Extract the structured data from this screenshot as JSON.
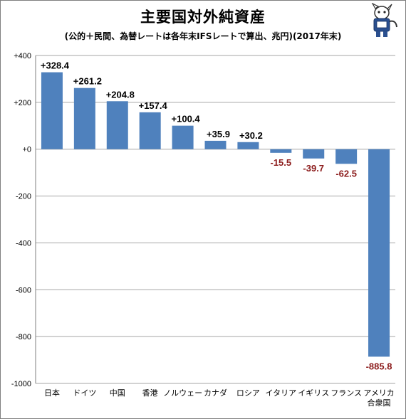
{
  "title": "主要国対外純資産",
  "subtitle": "(公的＋民間、為替レートは各年末IFSレートで算出、兆円)(2017年末)",
  "colors": {
    "bar": "#4f81bd",
    "negative_label": "#8b1a1a",
    "grid": "#a6a6a6"
  },
  "chart_data": {
    "type": "bar",
    "title": "主要国対外純資産",
    "subtitle": "(公的＋民間、為替レートは各年末IFSレートで算出、兆円)(2017年末)",
    "categories": [
      "日本",
      "ドイツ",
      "中国",
      "香港",
      "ノルウェー",
      "カナダ",
      "ロシア",
      "イタリア",
      "イギリス",
      "フランス",
      "アメリカ合衆国"
    ],
    "category_lines": [
      [
        "日本"
      ],
      [
        "ドイツ"
      ],
      [
        "中国"
      ],
      [
        "香港"
      ],
      [
        "ノルウェー"
      ],
      [
        "カナダ"
      ],
      [
        "ロシア"
      ],
      [
        "イタリア"
      ],
      [
        "イギリス"
      ],
      [
        "フランス"
      ],
      [
        "アメリカ",
        "合衆国"
      ]
    ],
    "values": [
      328.4,
      261.2,
      204.8,
      157.4,
      100.4,
      35.9,
      30.2,
      -15.5,
      -39.7,
      -62.5,
      -885.8
    ],
    "data_labels": [
      "+328.4",
      "+261.2",
      "+204.8",
      "+157.4",
      "+100.4",
      "+35.9",
      "+30.2",
      "-15.5",
      "-39.7",
      "-62.5",
      "-885.8"
    ],
    "yticks": [
      400,
      200,
      0,
      -200,
      -400,
      -600,
      -800,
      -1000
    ],
    "ytick_labels": [
      "+400",
      "+200",
      "+0",
      "-200",
      "-400",
      "-600",
      "-800",
      "-1000"
    ],
    "ylim": [
      -1000,
      400
    ],
    "grid": true,
    "legend": "none"
  }
}
